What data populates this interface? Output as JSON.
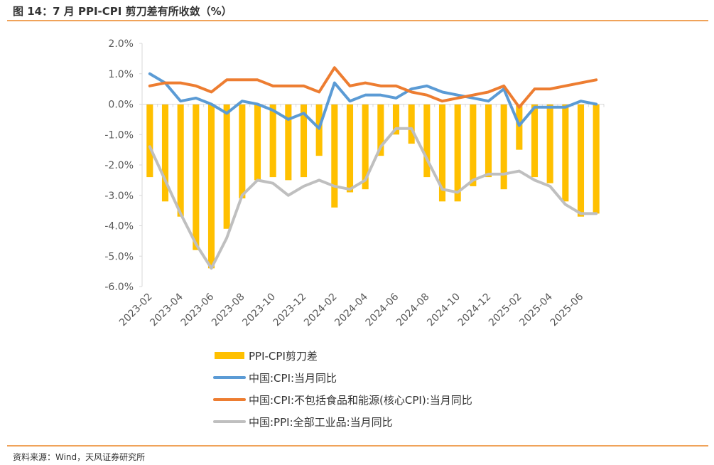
{
  "figure": {
    "title": "图 14：7 月 PPI-CPI 剪刀差有所收敛（%）",
    "source": "资料来源：Wind，天风证券研究所"
  },
  "colors": {
    "bar": "#ffc000",
    "cpi": "#5b9bd5",
    "core_cpi": "#ed7d31",
    "ppi": "#bfbfbf",
    "axis": "#d9d9d9",
    "rule": "#f0a35a"
  },
  "chart_data": {
    "type": "bar",
    "categories": [
      "2023-02",
      "2023-03",
      "2023-04",
      "2023-05",
      "2023-06",
      "2023-07",
      "2023-08",
      "2023-09",
      "2023-10",
      "2023-11",
      "2023-12",
      "2024-01",
      "2024-02",
      "2024-03",
      "2024-04",
      "2024-05",
      "2024-06",
      "2024-07",
      "2024-08",
      "2024-09",
      "2024-10",
      "2024-11",
      "2024-12",
      "2025-01",
      "2025-02",
      "2025-03",
      "2025-04",
      "2025-05",
      "2025-06",
      "2025-07"
    ],
    "x_tick_labels": [
      "2023-02",
      "2023-04",
      "2023-06",
      "2023-08",
      "2023-10",
      "2023-12",
      "2024-02",
      "2024-04",
      "2024-06",
      "2024-08",
      "2024-10",
      "2024-12",
      "2025-02",
      "2025-04",
      "2025-06"
    ],
    "y_tick_labels": [
      "2.0%",
      "1.0%",
      "0.0%",
      "-1.0%",
      "-2.0%",
      "-3.0%",
      "-4.0%",
      "-5.0%",
      "-6.0%"
    ],
    "ylim": [
      -6,
      2
    ],
    "ytick_step": 1,
    "grid": false,
    "legend_position": "bottom",
    "series": [
      {
        "name": "PPI-CPI剪刀差",
        "kind": "bar",
        "color": "#ffc000",
        "values": [
          -2.4,
          -3.2,
          -3.7,
          -4.8,
          -5.4,
          -4.1,
          -3.1,
          -2.5,
          -2.4,
          -2.5,
          -2.4,
          -1.7,
          -3.4,
          -2.9,
          -2.8,
          -1.7,
          -1.0,
          -1.3,
          -2.4,
          -3.2,
          -3.2,
          -2.7,
          -2.4,
          -2.8,
          -1.5,
          -2.4,
          -2.6,
          -3.2,
          -3.7,
          -3.6
        ]
      },
      {
        "name": "中国:CPI:当月同比",
        "kind": "line",
        "color": "#5b9bd5",
        "values": [
          1.0,
          0.7,
          0.1,
          0.2,
          0.0,
          -0.3,
          0.1,
          0.0,
          -0.2,
          -0.5,
          -0.3,
          -0.8,
          0.7,
          0.1,
          0.3,
          0.3,
          0.2,
          0.5,
          0.6,
          0.4,
          0.3,
          0.2,
          0.1,
          0.5,
          -0.7,
          -0.1,
          -0.1,
          -0.1,
          0.1,
          0.0
        ]
      },
      {
        "name": "中国:CPI:不包括食品和能源(核心CPI):当月同比",
        "kind": "line",
        "color": "#ed7d31",
        "values": [
          0.6,
          0.7,
          0.7,
          0.6,
          0.4,
          0.8,
          0.8,
          0.8,
          0.6,
          0.6,
          0.6,
          0.4,
          1.2,
          0.6,
          0.7,
          0.6,
          0.6,
          0.4,
          0.3,
          0.1,
          0.2,
          0.3,
          0.4,
          0.6,
          -0.1,
          0.5,
          0.5,
          0.6,
          0.7,
          0.8
        ]
      },
      {
        "name": "中国:PPI:全部工业品:当月同比",
        "kind": "line",
        "color": "#bfbfbf",
        "values": [
          -1.4,
          -2.5,
          -3.6,
          -4.6,
          -5.4,
          -4.4,
          -3.0,
          -2.5,
          -2.6,
          -3.0,
          -2.7,
          -2.5,
          -2.7,
          -2.8,
          -2.5,
          -1.4,
          -0.8,
          -0.8,
          -1.8,
          -2.8,
          -2.9,
          -2.5,
          -2.3,
          -2.3,
          -2.2,
          -2.5,
          -2.7,
          -3.3,
          -3.6,
          -3.6
        ]
      }
    ]
  }
}
